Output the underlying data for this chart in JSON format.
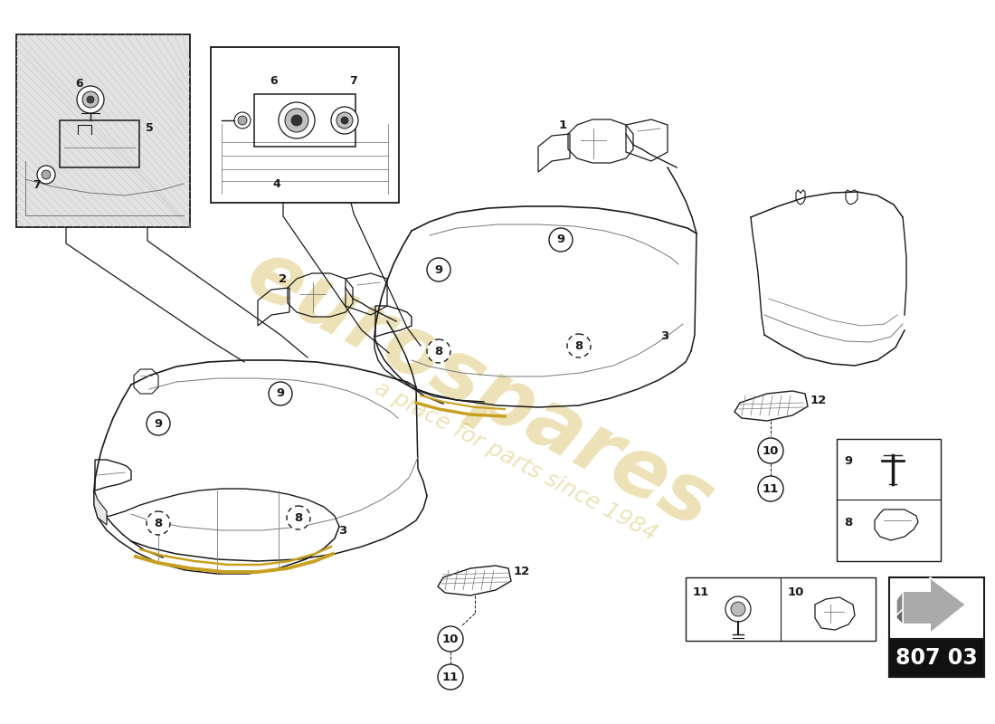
{
  "bg_color": "#ffffff",
  "diagram_number": "807 03",
  "watermark_line1": "eurospares",
  "watermark_line2": "a place for parts since 1984",
  "watermark_color": "#d4b84a",
  "line_color": "#1a1a1a",
  "light_line_color": "#777777",
  "gray_fill": "#dddddd",
  "dark_fill": "#555555",
  "gold_color": "#c8a020"
}
